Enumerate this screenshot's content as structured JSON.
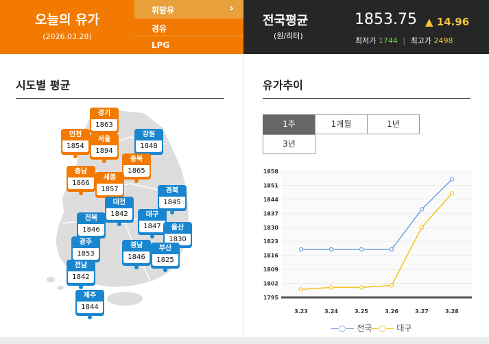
{
  "header": {
    "brand_title": "오늘의 유가",
    "brand_date": "(2026.03.28)",
    "fuel_tabs": [
      {
        "label": "휘발유",
        "icon": "chevron-right-icon"
      },
      {
        "label": "경유"
      },
      {
        "label": "LPG"
      }
    ],
    "national_title": "전국평균",
    "national_unit": "(원/리터)",
    "national_price": "1853.75",
    "national_change": "▲ 14.96",
    "low_label": "최저가",
    "low_value": "1744",
    "range_sep": "|",
    "high_label": "최고가",
    "high_value": "2498"
  },
  "regional": {
    "title": "시도별 평균",
    "regions": [
      {
        "name": "경기",
        "value": "1863",
        "trend": "up"
      },
      {
        "name": "인천",
        "value": "1854",
        "trend": "up"
      },
      {
        "name": "서울",
        "value": "1894",
        "trend": "up"
      },
      {
        "name": "강원",
        "value": "1848",
        "trend": "down"
      },
      {
        "name": "충북",
        "value": "1865",
        "trend": "up"
      },
      {
        "name": "충남",
        "value": "1866",
        "trend": "up"
      },
      {
        "name": "세종",
        "value": "1857",
        "trend": "up"
      },
      {
        "name": "경북",
        "value": "1845",
        "trend": "down"
      },
      {
        "name": "대전",
        "value": "1842",
        "trend": "down"
      },
      {
        "name": "전북",
        "value": "1846",
        "trend": "down"
      },
      {
        "name": "대구",
        "value": "1847",
        "trend": "down"
      },
      {
        "name": "울산",
        "value": "1830",
        "trend": "down"
      },
      {
        "name": "광주",
        "value": "1853",
        "trend": "down"
      },
      {
        "name": "경남",
        "value": "1846",
        "trend": "down"
      },
      {
        "name": "부산",
        "value": "1825",
        "trend": "down"
      },
      {
        "name": "전남",
        "value": "1842",
        "trend": "down"
      },
      {
        "name": "제주",
        "value": "1844",
        "trend": "down"
      }
    ]
  },
  "trend": {
    "title": "유가추이",
    "periods": [
      "1주",
      "1개월",
      "1년",
      "3년"
    ],
    "active_period": "1주"
  },
  "colors": {
    "up": "#f27a00",
    "down": "#1a86cf",
    "series_national": "#6fa1e8",
    "series_daegu": "#f5c21b"
  },
  "chart_data": {
    "type": "line",
    "x": [
      "3.23",
      "3.24",
      "3.25",
      "3.26",
      "3.27",
      "3.28"
    ],
    "yticks": [
      1795,
      1802,
      1809,
      1816,
      1823,
      1830,
      1837,
      1844,
      1851,
      1858
    ],
    "ylim": [
      1795,
      1858
    ],
    "series": [
      {
        "name": "전국",
        "values": [
          1819,
          1819,
          1819,
          1819,
          1839,
          1854
        ]
      },
      {
        "name": "대구",
        "values": [
          1799,
          1800,
          1800,
          1801,
          1830,
          1847
        ]
      }
    ],
    "legend_position": "bottom"
  }
}
